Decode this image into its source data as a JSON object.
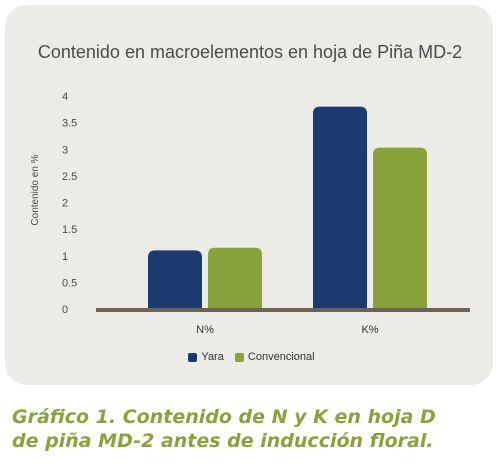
{
  "chart_data": {
    "type": "bar",
    "title": "Contenido en macroelementos en hoja de Piña MD-2",
    "xlabel": "",
    "ylabel": "Contenido en %",
    "categories": [
      "N%",
      "K%"
    ],
    "series": [
      {
        "name": "Yara",
        "values": [
          1.1,
          3.8
        ],
        "color": "#1b3a6d"
      },
      {
        "name": "Convencional",
        "values": [
          1.15,
          3.03
        ],
        "color": "#8aa23b"
      }
    ],
    "ylim": [
      0,
      4
    ],
    "yticks": [
      "0",
      "0.5",
      "1",
      "1.5",
      "2",
      "2.5",
      "3",
      "3.5",
      "4"
    ],
    "grid": false,
    "legend_position": "bottom"
  },
  "caption": {
    "line1": "Gráfico 1. Contenido de N y K en hoja D",
    "line2": "de piña MD-2 antes de inducción floral."
  },
  "colors": {
    "panel_background": "#ecebe7",
    "axis_line": "#6e6157",
    "caption_text": "#8aa23b"
  }
}
